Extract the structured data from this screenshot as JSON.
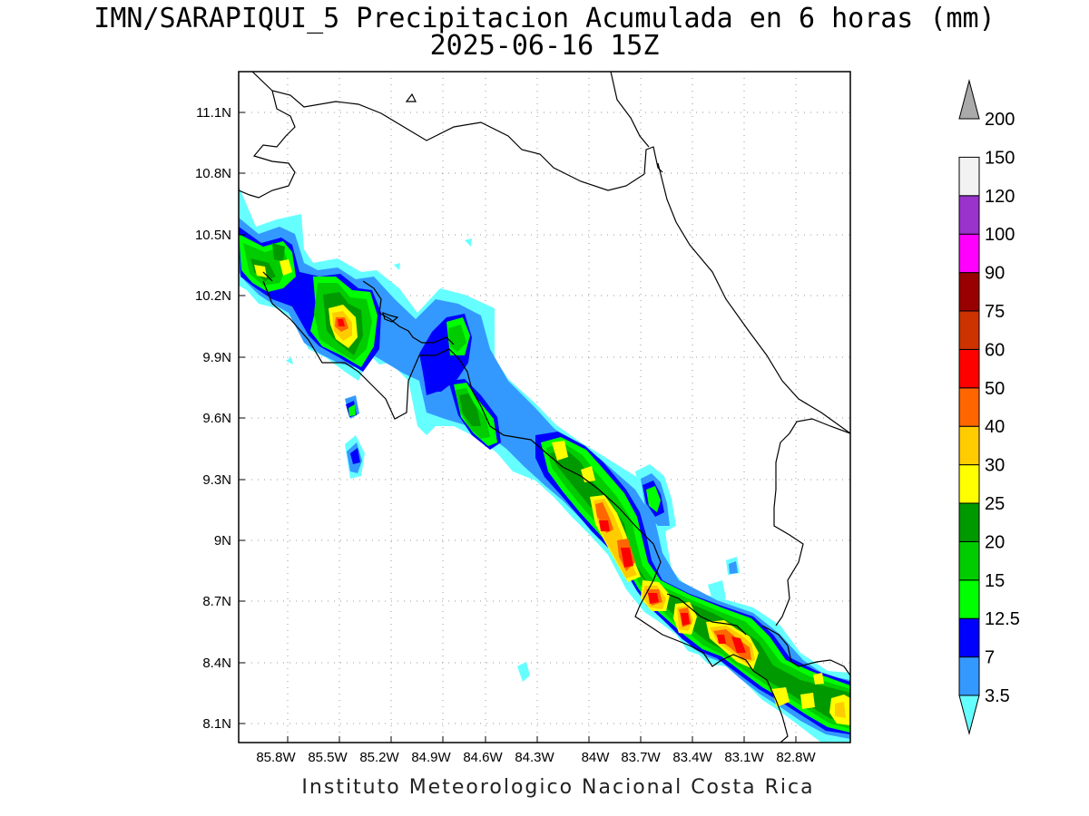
{
  "title_line1": "IMN/SARAPIQUI_5 Precipitacion Acumulada en 6 horas (mm)",
  "title_line2": "2025-06-16 15Z",
  "footer": "Instituto Meteorologico Nacional Costa Rica",
  "lon_ticks": [
    "85.8W",
    "85.5W",
    "85.2W",
    "84.9W",
    "84.6W",
    "84.3W",
    "84W",
    "83.7W",
    "83.4W",
    "83.1W",
    "82.8W"
  ],
  "lat_ticks": [
    "11.1N",
    "10.8N",
    "10.5N",
    "10.2N",
    "9.9N",
    "9.6N",
    "9.3N",
    "9N",
    "8.7N",
    "8.4N",
    "8.1N"
  ],
  "colorbar": {
    "labels": [
      "3.5",
      "7",
      "12.5",
      "15",
      "20",
      "25",
      "30",
      "40",
      "50",
      "60",
      "75",
      "90",
      "100",
      "120",
      "150",
      "200"
    ],
    "colors": [
      "#66ffff",
      "#3399ff",
      "#0000ff",
      "#00ff00",
      "#00cc00",
      "#009900",
      "#ffff00",
      "#ffcc00",
      "#ff6600",
      "#ff0000",
      "#cc3300",
      "#990000",
      "#ff00ff",
      "#9933cc",
      "#f2f2f2",
      "#aaaaaa"
    ]
  }
}
